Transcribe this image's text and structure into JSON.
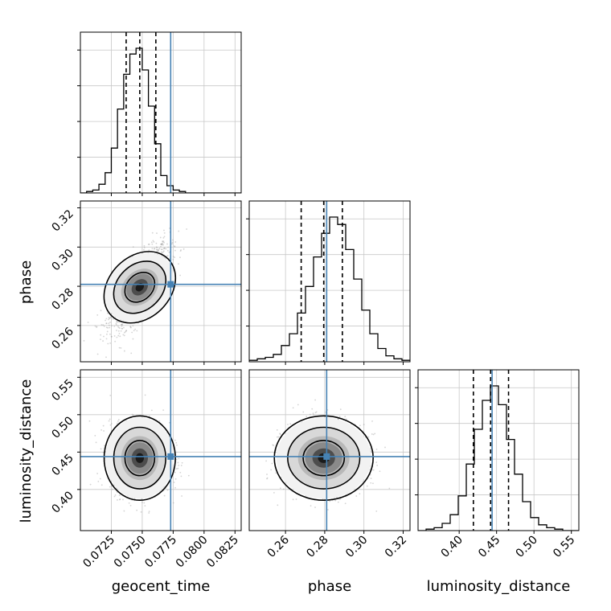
{
  "chart_data": {
    "type": "corner",
    "parameters": [
      "geocent_time",
      "phase",
      "luminosity_distance"
    ],
    "axis_labels": {
      "x": [
        "geocent_time",
        "phase",
        "luminosity_distance"
      ],
      "y": [
        "",
        "phase",
        "luminosity_distance"
      ]
    },
    "ranges": {
      "geocent_time": [
        0.07,
        0.083
      ],
      "phase": [
        0.2415,
        0.3235
      ],
      "luminosity_distance": [
        0.345,
        0.56
      ]
    },
    "ticks": {
      "geocent_time": [
        {
          "value": 0.0725,
          "label": "0.0725"
        },
        {
          "value": 0.075,
          "label": "0.0750"
        },
        {
          "value": 0.0775,
          "label": "0.0775"
        },
        {
          "value": 0.08,
          "label": "0.0800"
        },
        {
          "value": 0.0825,
          "label": "0.0825"
        }
      ],
      "phase": [
        {
          "value": 0.26,
          "label": "0.26"
        },
        {
          "value": 0.28,
          "label": "0.28"
        },
        {
          "value": 0.3,
          "label": "0.30"
        },
        {
          "value": 0.32,
          "label": "0.32"
        }
      ],
      "luminosity_distance": [
        {
          "value": 0.4,
          "label": "0.40"
        },
        {
          "value": 0.45,
          "label": "0.45"
        },
        {
          "value": 0.5,
          "label": "0.50"
        },
        {
          "value": 0.55,
          "label": "0.55"
        }
      ]
    },
    "injection": {
      "geocent_time": 0.0773,
      "phase": 0.281,
      "luminosity_distance": 0.444
    },
    "quantiles": {
      "geocent_time": [
        0.0737,
        0.0748,
        0.0761
      ],
      "phase": [
        0.268,
        0.2795,
        0.289
      ],
      "luminosity_distance": [
        0.419,
        0.442,
        0.466
      ]
    },
    "histograms": {
      "geocent_time": {
        "edges": [
          0.07,
          0.083
        ],
        "counts": [
          0,
          1,
          2,
          6,
          14,
          31,
          58,
          82,
          96,
          100,
          85,
          60,
          34,
          12,
          5,
          2,
          1,
          0,
          0,
          0,
          0,
          0,
          0,
          0,
          0,
          0
        ]
      },
      "phase": {
        "edges": [
          0.2415,
          0.3235
        ],
        "counts": [
          1,
          2,
          3,
          5,
          11,
          19,
          33,
          51,
          71,
          87,
          98,
          93,
          76,
          56,
          35,
          19,
          9,
          4,
          2,
          1
        ]
      },
      "luminosity_distance": {
        "edges": [
          0.345,
          0.56
        ],
        "counts": [
          0,
          1,
          2,
          5,
          11,
          24,
          46,
          70,
          90,
          100,
          87,
          63,
          39,
          20,
          9,
          4,
          2,
          1,
          0,
          0
        ]
      }
    },
    "pairs": [
      {
        "x": "geocent_time",
        "y": "phase",
        "correlation": 0.72
      },
      {
        "x": "geocent_time",
        "y": "luminosity_distance",
        "correlation": 0.0
      },
      {
        "x": "phase",
        "y": "luminosity_distance",
        "correlation": 0.0
      }
    ],
    "colors": {
      "injection": "#4682b4",
      "hist": "#000000",
      "contour": "#000000",
      "grid": "#c8c8c8",
      "samples": "#a0a0a0"
    },
    "grid": true
  }
}
